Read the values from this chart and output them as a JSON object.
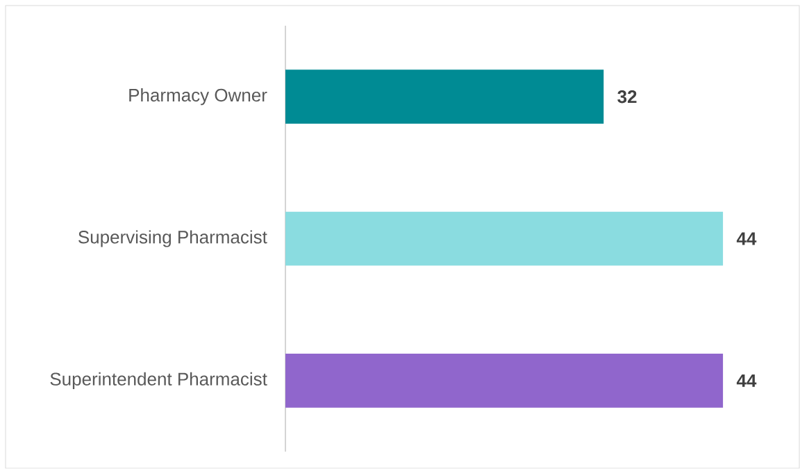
{
  "chart_data": {
    "type": "bar",
    "orientation": "horizontal",
    "categories": [
      "Pharmacy Owner",
      "Supervising Pharmacist",
      "Superintendent Pharmacist"
    ],
    "values": [
      32,
      44,
      44
    ],
    "colors": [
      "#008b94",
      "#8adce0",
      "#9066cc"
    ],
    "data_labels": true
  }
}
